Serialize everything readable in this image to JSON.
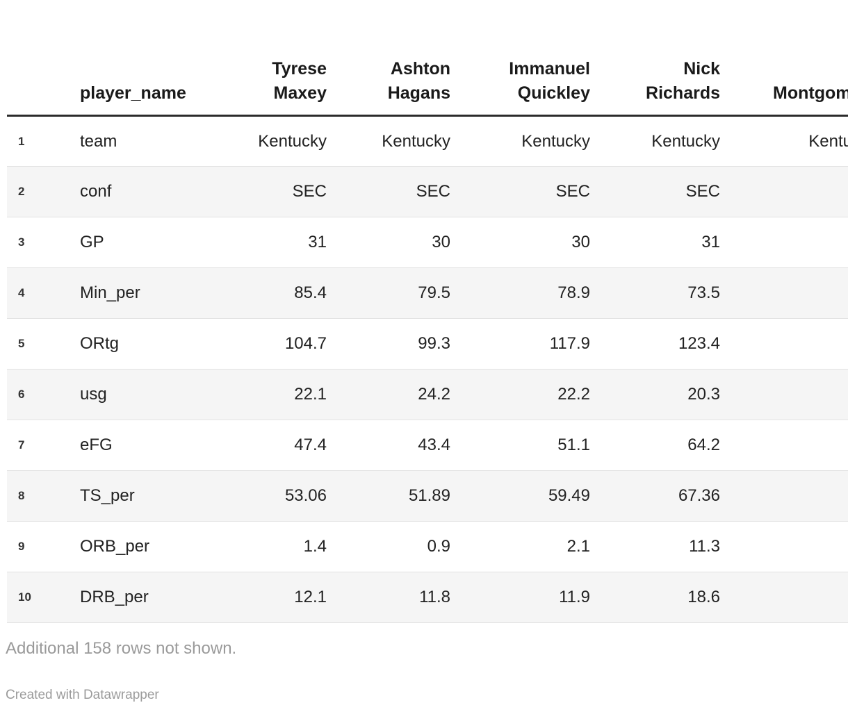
{
  "table": {
    "header": {
      "player_name_label": "player_name",
      "players": [
        {
          "first": "Tyrese",
          "last": "Maxey"
        },
        {
          "first": "Ashton",
          "last": "Hagans"
        },
        {
          "first": "Immanuel",
          "last": "Quickley"
        },
        {
          "first": "Nick",
          "last": "Richards"
        },
        {
          "first": "",
          "last": "Montgomery"
        }
      ]
    },
    "rows": [
      {
        "num": "1",
        "label": "team",
        "values": [
          "Kentucky",
          "Kentucky",
          "Kentucky",
          "Kentucky",
          "Kentucky"
        ]
      },
      {
        "num": "2",
        "label": "conf",
        "values": [
          "SEC",
          "SEC",
          "SEC",
          "SEC",
          ""
        ]
      },
      {
        "num": "3",
        "label": "GP",
        "values": [
          "31",
          "30",
          "30",
          "31",
          ""
        ]
      },
      {
        "num": "4",
        "label": "Min_per",
        "values": [
          "85.4",
          "79.5",
          "78.9",
          "73.5",
          ""
        ]
      },
      {
        "num": "5",
        "label": "ORtg",
        "values": [
          "104.7",
          "99.3",
          "117.9",
          "123.4",
          ""
        ]
      },
      {
        "num": "6",
        "label": "usg",
        "values": [
          "22.1",
          "24.2",
          "22.2",
          "20.3",
          ""
        ]
      },
      {
        "num": "7",
        "label": "eFG",
        "values": [
          "47.4",
          "43.4",
          "51.1",
          "64.2",
          ""
        ]
      },
      {
        "num": "8",
        "label": "TS_per",
        "values": [
          "53.06",
          "51.89",
          "59.49",
          "67.36",
          ""
        ]
      },
      {
        "num": "9",
        "label": "ORB_per",
        "values": [
          "1.4",
          "0.9",
          "2.1",
          "11.3",
          ""
        ]
      },
      {
        "num": "10",
        "label": "DRB_per",
        "values": [
          "12.1",
          "11.8",
          "11.9",
          "18.6",
          ""
        ]
      }
    ]
  },
  "footer": {
    "additional_rows_note": "Additional 158 rows not shown.",
    "attribution": "Created with Datawrapper"
  },
  "colors": {
    "row_shade": "#f5f5f5",
    "divider": "#e2e2e2",
    "header_rule": "#2b2b2b",
    "text": "#222222",
    "muted": "#9a9a9a"
  },
  "chart_data": {
    "type": "table",
    "title": "",
    "columns": [
      "row_number",
      "player_name",
      "Tyrese Maxey",
      "Ashton Hagans",
      "Immanuel Quickley",
      "Nick Richards",
      "Montgomery (clipped at right edge)"
    ],
    "rows": [
      [
        "1",
        "team",
        "Kentucky",
        "Kentucky",
        "Kentucky",
        "Kentucky",
        "Kentucky"
      ],
      [
        "2",
        "conf",
        "SEC",
        "SEC",
        "SEC",
        "SEC",
        ""
      ],
      [
        "3",
        "GP",
        "31",
        "30",
        "30",
        "31",
        ""
      ],
      [
        "4",
        "Min_per",
        "85.4",
        "79.5",
        "78.9",
        "73.5",
        ""
      ],
      [
        "5",
        "ORtg",
        "104.7",
        "99.3",
        "117.9",
        "123.4",
        ""
      ],
      [
        "6",
        "usg",
        "22.1",
        "24.2",
        "22.2",
        "20.3",
        ""
      ],
      [
        "7",
        "eFG",
        "47.4",
        "43.4",
        "51.1",
        "64.2",
        ""
      ],
      [
        "8",
        "TS_per",
        "53.06",
        "51.89",
        "59.49",
        "67.36",
        ""
      ],
      [
        "9",
        "ORB_per",
        "1.4",
        "0.9",
        "2.1",
        "11.3",
        ""
      ],
      [
        "10",
        "DRB_per",
        "12.1",
        "11.8",
        "11.9",
        "18.6",
        ""
      ]
    ],
    "layout_hints": {
      "alternating_row_shading": true,
      "numeric_columns_right_aligned": true,
      "footer_note": "Additional 158 rows not shown.",
      "attribution": "Created with Datawrapper",
      "last_column_clipped_by_viewport": true
    }
  }
}
